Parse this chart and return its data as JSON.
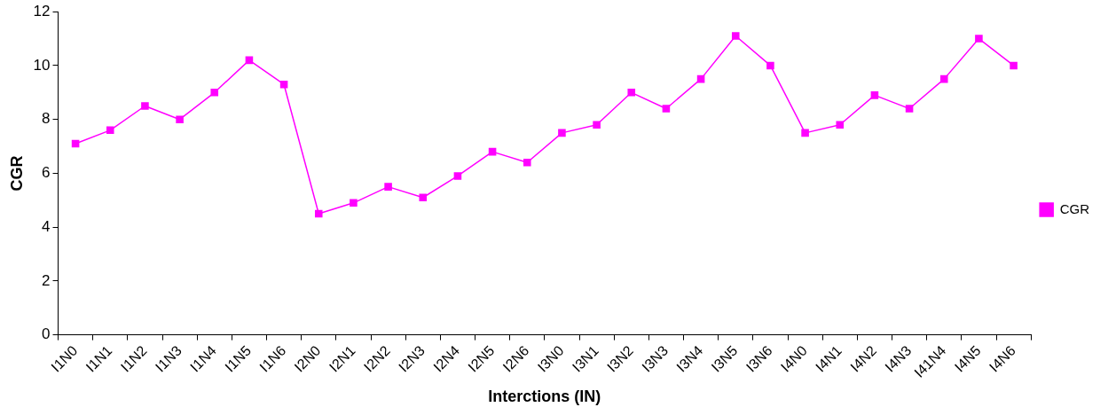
{
  "chart_data": {
    "type": "line",
    "xlabel": "Interctions (IN)",
    "ylabel": "CGR",
    "categories": [
      "I1N0",
      "I1N1",
      "I1N2",
      "I1N3",
      "I1N4",
      "I1N5",
      "I1N6",
      "I2N0",
      "I2N1",
      "I2N2",
      "I2N3",
      "I2N4",
      "I2N5",
      "I2N6",
      "I3N0",
      "I3N1",
      "I3N2",
      "I3N3",
      "I3N4",
      "I3N5",
      "I3N6",
      "I4N0",
      "I4N1",
      "I4N2",
      "I4N3",
      "I41N4",
      "I4N5",
      "I4N6"
    ],
    "series": [
      {
        "name": "CGR",
        "color": "#ff00ff",
        "values": [
          7.1,
          7.6,
          8.5,
          8.0,
          9.0,
          10.2,
          9.3,
          4.5,
          4.9,
          5.5,
          5.1,
          5.9,
          6.8,
          6.4,
          7.5,
          7.8,
          9.0,
          8.4,
          9.5,
          11.1,
          10.0,
          7.5,
          7.8,
          8.9,
          8.4,
          9.5,
          11.0,
          10.0
        ]
      }
    ],
    "ylim": [
      0,
      12
    ],
    "yticks": [
      0,
      2,
      4,
      6,
      8,
      10,
      12
    ],
    "grid": false,
    "legend": "right",
    "marker": "square",
    "line_style": "solid"
  }
}
